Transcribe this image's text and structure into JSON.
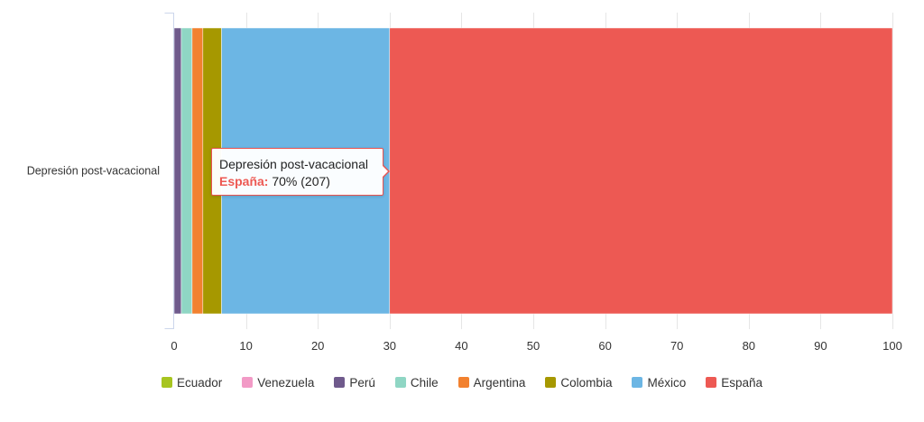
{
  "chart_data": {
    "type": "bar",
    "orientation": "horizontal",
    "stacking": "percent",
    "categories": [
      "Depresión post-vacacional"
    ],
    "x_ticks": [
      "0",
      "10",
      "20",
      "30",
      "40",
      "50",
      "60",
      "70",
      "80",
      "90",
      "100"
    ],
    "xlim": [
      0,
      100
    ],
    "grid": true,
    "legend_position": "bottom",
    "series": [
      {
        "name": "Ecuador",
        "color": "#a7c520",
        "values": [
          0
        ]
      },
      {
        "name": "Venezuela",
        "color": "#f29ac6",
        "values": [
          0
        ]
      },
      {
        "name": "Perú",
        "color": "#6f5a8c",
        "values": [
          1
        ]
      },
      {
        "name": "Chile",
        "color": "#8fd6c4",
        "values": [
          1.5
        ]
      },
      {
        "name": "Argentina",
        "color": "#f2812f",
        "values": [
          1.5
        ]
      },
      {
        "name": "Colombia",
        "color": "#a69800",
        "values": [
          2.6
        ]
      },
      {
        "name": "México",
        "color": "#6cb6e4",
        "values": [
          23.4
        ]
      },
      {
        "name": "España",
        "color": "#ed5953",
        "values": [
          70
        ]
      }
    ]
  },
  "tooltip": {
    "category": "Depresión post-vacacional",
    "series": "España:",
    "value_text": "70% (207)"
  }
}
